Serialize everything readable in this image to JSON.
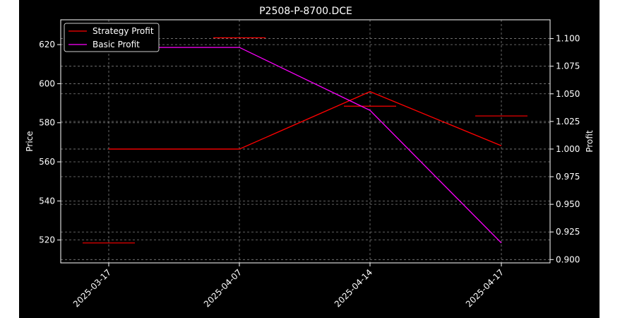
{
  "chart_data": {
    "type": "line",
    "title": "P2508-P-8700.DCE",
    "xlabel": "",
    "ylabel": "Price",
    "y2label": "Profit",
    "categories": [
      "2025-03-17",
      "2025-04-07",
      "2025-04-14",
      "2025-04-17"
    ],
    "ylim": [
      508.3,
      632.7
    ],
    "y2lim": [
      0.897,
      1.117
    ],
    "yticks": [
      520,
      540,
      560,
      580,
      600,
      620
    ],
    "y2ticks": [
      0.9,
      0.925,
      0.95,
      0.975,
      1.0,
      1.025,
      1.05,
      1.075,
      1.1
    ],
    "y2tick_labels": [
      "0.900",
      "0.925",
      "0.950",
      "0.975",
      "1.000",
      "1.025",
      "1.050",
      "1.075",
      "1.100"
    ],
    "price_markers": {
      "color": "#ff0000",
      "values": [
        518.5,
        623.5,
        588.5,
        583.5
      ]
    },
    "series": [
      {
        "name": "Strategy Profit",
        "axis": "right",
        "color": "#ff0000",
        "values": [
          1.0,
          1.0,
          1.052,
          1.003
        ]
      },
      {
        "name": "Basic Profit",
        "axis": "right",
        "color": "#ff00ff",
        "values": [
          1.092,
          1.092,
          1.035,
          0.915
        ]
      }
    ],
    "grid": true,
    "legend": "top-left",
    "colors": {
      "background": "#000000",
      "axis": "#ffffff",
      "grid": "#808080",
      "page": "#ffffff"
    }
  }
}
